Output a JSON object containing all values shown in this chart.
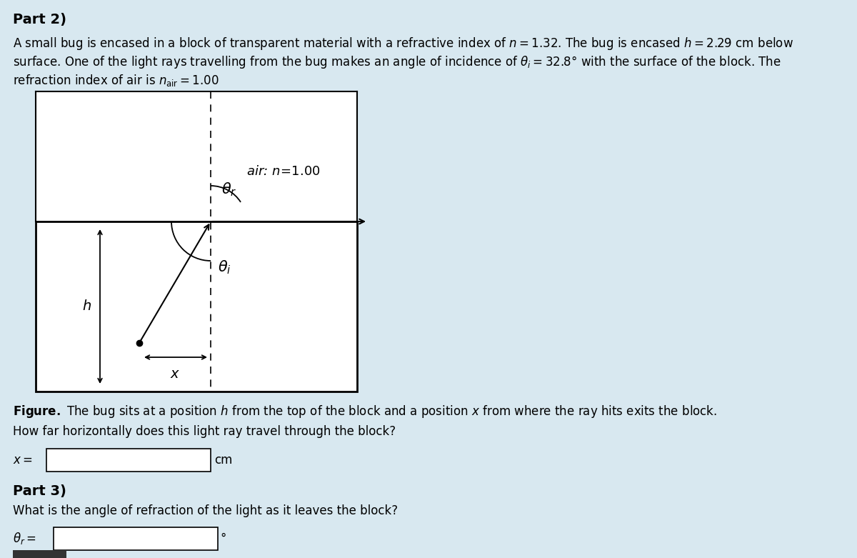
{
  "background_color": "#d8e8f0",
  "text_color": "#000000",
  "diagram_bg": "#ffffff",
  "fig_width": 12.0,
  "fig_height": 7.81,
  "dpi": 100,
  "part2_title": "Part 2)",
  "line1": "A small bug is encased in a block of transparent material with a refractive index of $n = 1.32$. The bug is encased $h = 2.29$ cm below",
  "line2": "surface. One of the light rays travelling from the bug makes an angle of incidence of $\\theta_i = 32.8$° with the surface of the block. The",
  "line3": "refraction index of air is $n_{\\mathrm{air}} = 1.00$",
  "air_label": "air: $n\\!=\\!1.00$",
  "fig_caption": "$\\mathbf{Figure.}$ The bug sits at a position $h$ from the top of the block and a position $x$ from where the ray hits exits the block.",
  "q1": "How far horizontally does this light ray travel through the block?",
  "a1_label": "$x =$",
  "a1_unit": "cm",
  "part3_title": "Part 3)",
  "q2": "What is the angle of refraction of the light as it leaves the block?",
  "a2_label": "$\\theta_r =$",
  "a2_unit": "°",
  "theta_i_surface_deg": 32.8,
  "n1": 1.32,
  "n2": 1.0
}
